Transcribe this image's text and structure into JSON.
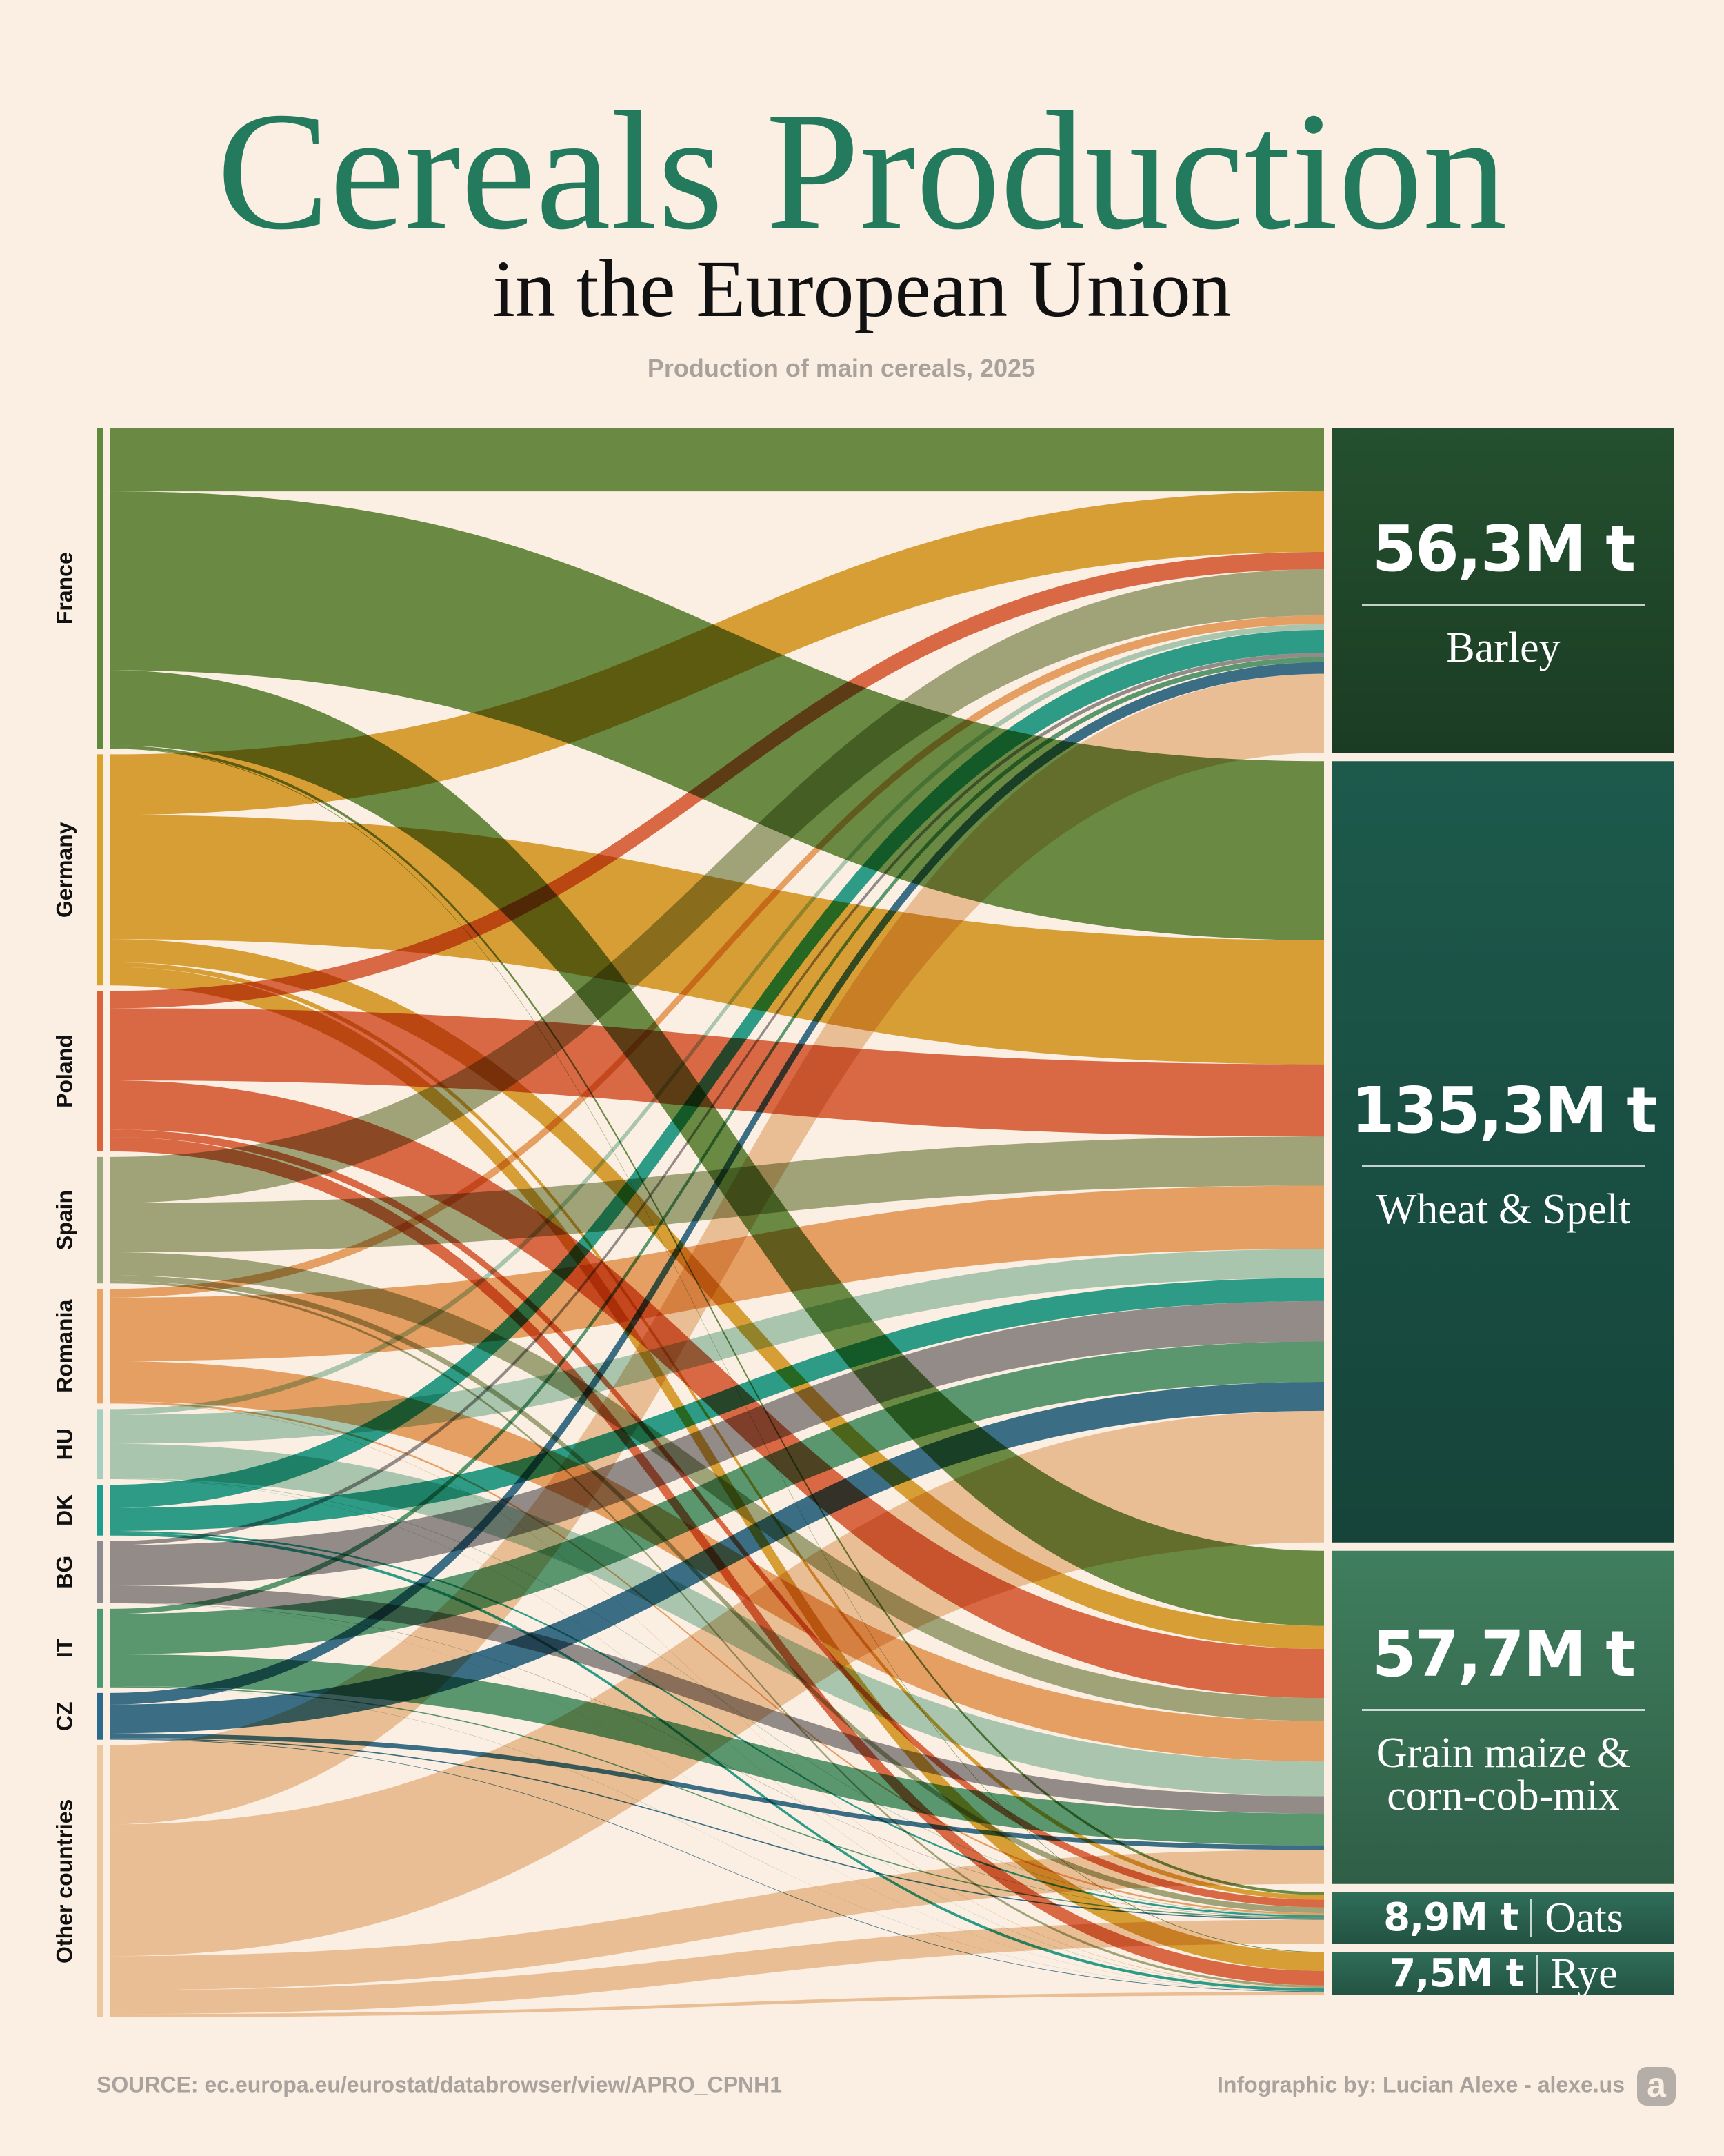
{
  "chart_data": {
    "type": "sankey",
    "title": "Cereals Production",
    "subtitle": "in the European Union",
    "description": "Production of main cereals, 2025",
    "source": "SOURCE: ec.europa.eu/eurostat/databrowser/view/APRO_CPNH1",
    "credit": "Infographic by: Lucian Alexe - alexe.us",
    "logo": "a",
    "targets": [
      {
        "name": "Barley",
        "value": 56.3,
        "value_label": "56,3M t",
        "color": "#24502f"
      },
      {
        "name": "Wheat & Spelt",
        "value": 135.3,
        "value_label": "135,3M t",
        "color": "#1d5a4c"
      },
      {
        "name": "Grain maize & corn-cob-mix",
        "value": 57.7,
        "value_label": "57,7M t",
        "color": "#3f7e5e"
      },
      {
        "name": "Oats",
        "value": 8.9,
        "value_label": "8,9M t",
        "color": "#2f6e58"
      },
      {
        "name": "Rye",
        "value": 7.5,
        "value_label": "7,5M t",
        "color": "#2f6e58"
      }
    ],
    "sources": [
      {
        "name": "France",
        "color": "#5f8a3b",
        "values": [
          11,
          31,
          13,
          0.5,
          0.1
        ]
      },
      {
        "name": "Germany",
        "color": "#d9a22c",
        "values": [
          10.5,
          21.5,
          4,
          0.8,
          3.2
        ]
      },
      {
        "name": "Poland",
        "color": "#d9643c",
        "values": [
          3,
          12.5,
          8.5,
          1.3,
          2.5
        ]
      },
      {
        "name": "Spain",
        "color": "#9ba77c",
        "values": [
          8,
          8.5,
          4,
          1,
          0.4
        ]
      },
      {
        "name": "Romania",
        "color": "#e8a464",
        "values": [
          1.5,
          11,
          7,
          0.3,
          0.05
        ]
      },
      {
        "name": "HU",
        "color": "#a6cfbf",
        "values": [
          1,
          5,
          6,
          0.1,
          0.05
        ]
      },
      {
        "name": "DK",
        "color": "#1c9f8f",
        "values": [
          4,
          4,
          0,
          0.3,
          0.5
        ]
      },
      {
        "name": "BG",
        "color": "#8c8c90",
        "values": [
          0.7,
          7,
          3,
          0.05,
          0.02
        ]
      },
      {
        "name": "IT",
        "color": "#4d9a72",
        "values": [
          0.9,
          7,
          5.5,
          0.2,
          0.02
        ]
      },
      {
        "name": "CZ",
        "color": "#2b6a8c",
        "values": [
          2,
          5,
          0.8,
          0.2,
          0.1
        ]
      },
      {
        "name": "Other countries",
        "color": "#ecc8a0",
        "values": [
          13.7,
          22.8,
          5.9,
          4.15,
          0.56
        ]
      }
    ]
  }
}
